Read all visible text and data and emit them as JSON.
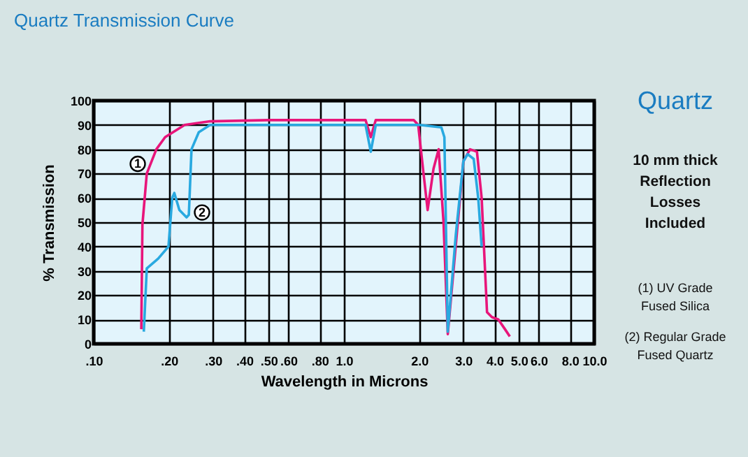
{
  "chart_data": {
    "type": "line",
    "title": "Quartz Transmission Curve",
    "xlabel": "Wavelength in Microns",
    "ylabel": "% Transmission",
    "series": [
      {
        "color": "#e8157a",
        "x": [
          0.155,
          0.1566,
          0.163,
          0.178,
          0.193,
          0.231,
          0.292,
          0.5,
          1.0,
          1.22,
          1.28,
          1.34,
          1.5,
          1.9,
          1.98,
          2.08,
          2.16,
          2.28,
          2.39,
          2.5,
          2.6,
          3.0,
          3.19,
          3.4,
          3.55,
          3.73,
          3.9,
          4.14,
          4.4,
          4.6
        ],
        "values": [
          6,
          49,
          70,
          80,
          85,
          90,
          91.5,
          92,
          92,
          92,
          85,
          92,
          92,
          92,
          90,
          70,
          55,
          72,
          80,
          50,
          4,
          75,
          80,
          79,
          60,
          13,
          11,
          10,
          6,
          3
        ]
      },
      {
        "color": "#29a9e0",
        "x": [
          0.1586,
          0.163,
          0.181,
          0.199,
          0.206,
          0.21,
          0.22,
          0.235,
          0.24,
          0.246,
          0.263,
          0.292,
          0.5,
          1.0,
          1.22,
          1.28,
          1.34,
          1.5,
          2.0,
          2.45,
          2.52,
          2.6,
          2.8,
          3.0,
          3.12,
          3.3,
          3.44,
          3.55
        ],
        "values": [
          5,
          31,
          35,
          40,
          60,
          62,
          55,
          52,
          53,
          80,
          87,
          90,
          90,
          90,
          90,
          79,
          90,
          90,
          90,
          89,
          85,
          5,
          45,
          75,
          78,
          76,
          60,
          40
        ]
      }
    ],
    "xlim": [
      0.1,
      10
    ],
    "log": "x",
    "xticks": [
      {
        "value": 0.1,
        "label": ".10"
      },
      {
        "value": 0.2,
        "label": ".20"
      },
      {
        "value": 0.3,
        "label": ".30"
      },
      {
        "value": 0.4,
        "label": ".40"
      },
      {
        "value": 0.5,
        "label": ".50"
      },
      {
        "value": 0.6,
        "label": ".60"
      },
      {
        "value": 0.8,
        "label": ".80"
      },
      {
        "value": 1,
        "label": "1.0"
      },
      {
        "value": 2,
        "label": "2.0"
      },
      {
        "value": 3,
        "label": "3.0"
      },
      {
        "value": 4,
        "label": "4.0"
      },
      {
        "value": 5,
        "label": "5.0"
      },
      {
        "value": 6,
        "label": "6.0"
      },
      {
        "value": 8,
        "label": "8.0"
      },
      {
        "value": 10,
        "label": "10.0"
      }
    ],
    "ylim": [
      0,
      100
    ],
    "yticks": [
      0,
      10,
      20,
      30,
      40,
      50,
      60,
      70,
      80,
      90,
      100
    ],
    "grid": true,
    "marker": "none",
    "line_style": "solid",
    "annotations": [
      {
        "text": "1",
        "x": 0.15,
        "y": 74
      },
      {
        "text": "2",
        "x": 0.271,
        "y": 54
      },
      "Quartz",
      "10 mm thick\nReflection\nLosses\nIncluded",
      "(1) UV Grade\nFused Silica",
      "(2) Regular Grade\nFused Quartz"
    ]
  }
}
